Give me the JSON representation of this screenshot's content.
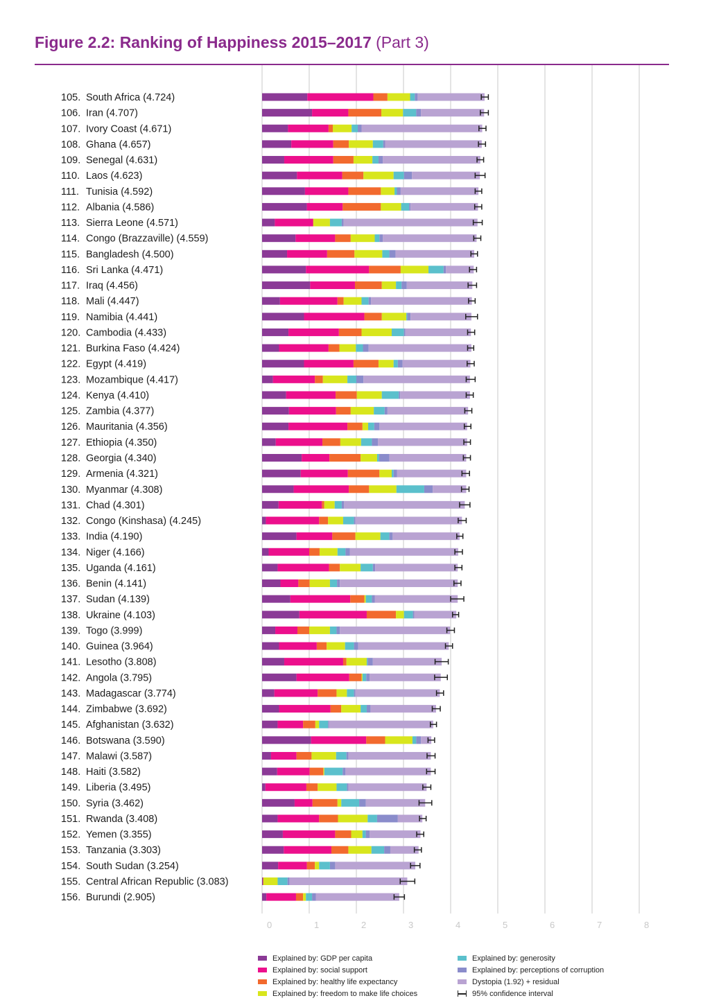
{
  "title": {
    "main": "Figure 2.2: Ranking of Happiness 2015–2017",
    "part": "(Part 3)"
  },
  "colors": {
    "accent": "#8a2a8c",
    "gdp": "#8b3a96",
    "social": "#ec0f8c",
    "health": "#f26a2e",
    "freedom": "#d8e61d",
    "generosity": "#5bc0cc",
    "corruption": "#8a8ccb",
    "dystopia": "#b9a3d2",
    "ci": "#222222",
    "grid": "#dcdcdc",
    "tick": "#c8c8c8"
  },
  "legend": [
    {
      "key": "gdp",
      "label": "Explained by: GDP per capita"
    },
    {
      "key": "social",
      "label": "Explained by: social support"
    },
    {
      "key": "health",
      "label": "Explained by: healthy life expectancy"
    },
    {
      "key": "freedom",
      "label": "Explained by: freedom to make life choices"
    },
    {
      "key": "generosity",
      "label": "Explained by: generosity"
    },
    {
      "key": "corruption",
      "label": "Explained by: perceptions of corruption"
    },
    {
      "key": "dystopia",
      "label": "Dystopia (1.92) + residual"
    },
    {
      "key": "ci",
      "label": "95% confidence interval"
    }
  ],
  "chart_data": {
    "type": "bar",
    "orientation": "horizontal",
    "stacked": true,
    "xlim": [
      0,
      8
    ],
    "x_ticks": [
      "0",
      "1",
      "2",
      "3",
      "4",
      "5",
      "6",
      "7",
      "8"
    ],
    "grid": true,
    "legend_position": "bottom",
    "series": [
      {
        "key": "gdp",
        "name": "Explained by: GDP per capita"
      },
      {
        "key": "social",
        "name": "Explained by: social support"
      },
      {
        "key": "health",
        "name": "Explained by: healthy life expectancy"
      },
      {
        "key": "freedom",
        "name": "Explained by: freedom to make life choices"
      },
      {
        "key": "generosity",
        "name": "Explained by: generosity"
      },
      {
        "key": "corruption",
        "name": "Explained by: perceptions of corruption"
      },
      {
        "key": "dystopia",
        "name": "Dystopia (1.92) + residual"
      }
    ],
    "rows": [
      {
        "label": "105. South Africa (4.724)",
        "score": 4.724,
        "parts": [
          0.96,
          1.4,
          0.3,
          0.48,
          0.1,
          0.06,
          1.42
        ],
        "ci": [
          4.65,
          4.8
        ]
      },
      {
        "label": "106. Iran (4.707)",
        "score": 4.707,
        "parts": [
          1.06,
          0.77,
          0.7,
          0.46,
          0.28,
          0.1,
          1.34
        ],
        "ci": [
          4.63,
          4.8
        ]
      },
      {
        "label": "107. Ivory Coast (4.671)",
        "score": 4.671,
        "parts": [
          0.55,
          0.86,
          0.09,
          0.4,
          0.13,
          0.08,
          2.56
        ],
        "ci": [
          4.6,
          4.75
        ]
      },
      {
        "label": "108. Ghana (4.657)",
        "score": 4.657,
        "parts": [
          0.62,
          0.89,
          0.33,
          0.51,
          0.22,
          0.04,
          2.05
        ],
        "ci": [
          4.59,
          4.74
        ]
      },
      {
        "label": "109. Senegal (4.631)",
        "score": 4.631,
        "parts": [
          0.47,
          1.04,
          0.43,
          0.4,
          0.13,
          0.09,
          2.07
        ],
        "ci": [
          4.56,
          4.7
        ]
      },
      {
        "label": "110. Laos (4.623)",
        "score": 4.623,
        "parts": [
          0.74,
          0.96,
          0.45,
          0.64,
          0.22,
          0.17,
          1.44
        ],
        "ci": [
          4.52,
          4.73
        ]
      },
      {
        "label": "111. Tunisia (4.592)",
        "score": 4.592,
        "parts": [
          0.91,
          0.92,
          0.69,
          0.29,
          0.05,
          0.08,
          1.65
        ],
        "ci": [
          4.52,
          4.66
        ]
      },
      {
        "label": "112. Albania (4.586)",
        "score": 4.586,
        "parts": [
          0.95,
          0.76,
          0.81,
          0.43,
          0.17,
          0.03,
          1.43
        ],
        "ci": [
          4.51,
          4.66
        ]
      },
      {
        "label": "113. Sierra Leone (4.571)",
        "score": 4.571,
        "parts": [
          0.27,
          0.81,
          0.01,
          0.35,
          0.25,
          0.04,
          2.84
        ],
        "ci": [
          4.48,
          4.67
        ]
      },
      {
        "label": "114. Congo (Brazzaville) (4.559)",
        "score": 4.559,
        "parts": [
          0.71,
          0.84,
          0.33,
          0.51,
          0.1,
          0.07,
          1.99
        ],
        "ci": [
          4.49,
          4.64
        ]
      },
      {
        "label": "115. Bangladesh (4.500)",
        "score": 4.5,
        "parts": [
          0.53,
          0.85,
          0.58,
          0.59,
          0.15,
          0.13,
          1.67
        ],
        "ci": [
          4.43,
          4.57
        ]
      },
      {
        "label": "116. Sri Lanka (4.471)",
        "score": 4.471,
        "parts": [
          0.93,
          1.34,
          0.67,
          0.59,
          0.32,
          0.05,
          0.59
        ],
        "ci": [
          4.4,
          4.55
        ]
      },
      {
        "label": "117. Iraq (4.456)",
        "score": 4.456,
        "parts": [
          1.02,
          0.95,
          0.57,
          0.3,
          0.12,
          0.11,
          1.39
        ],
        "ci": [
          4.37,
          4.55
        ]
      },
      {
        "label": "118. Mali (4.447)",
        "score": 4.447,
        "parts": [
          0.38,
          1.22,
          0.13,
          0.38,
          0.15,
          0.05,
          2.14
        ],
        "ci": [
          4.38,
          4.52
        ]
      },
      {
        "label": "119. Namibia (4.441)",
        "score": 4.441,
        "parts": [
          0.89,
          1.28,
          0.37,
          0.52,
          0.02,
          0.07,
          1.29
        ],
        "ci": [
          4.32,
          4.57
        ]
      },
      {
        "label": "120. Cambodia (4.433)",
        "score": 4.433,
        "parts": [
          0.56,
          1.07,
          0.48,
          0.64,
          0.26,
          0.03,
          1.39
        ],
        "ci": [
          4.36,
          4.51
        ]
      },
      {
        "label": "121. Burkina Faso (4.424)",
        "score": 4.424,
        "parts": [
          0.36,
          1.05,
          0.23,
          0.35,
          0.15,
          0.12,
          2.18
        ],
        "ci": [
          4.36,
          4.49
        ]
      },
      {
        "label": "122. Egypt (4.419)",
        "score": 4.419,
        "parts": [
          0.89,
          1.05,
          0.53,
          0.32,
          0.09,
          0.1,
          1.44
        ],
        "ci": [
          4.35,
          4.5
        ]
      },
      {
        "label": "123. Mozambique (4.417)",
        "score": 4.417,
        "parts": [
          0.23,
          0.89,
          0.17,
          0.52,
          0.19,
          0.15,
          2.26
        ],
        "ci": [
          4.33,
          4.52
        ]
      },
      {
        "label": "124. Kenya (4.410)",
        "score": 4.41,
        "parts": [
          0.51,
          1.05,
          0.45,
          0.53,
          0.36,
          0.03,
          1.48
        ],
        "ci": [
          4.33,
          4.48
        ]
      },
      {
        "label": "125. Zambia (4.377)",
        "score": 4.377,
        "parts": [
          0.57,
          1.0,
          0.31,
          0.49,
          0.23,
          0.06,
          1.71
        ],
        "ci": [
          4.3,
          4.45
        ]
      },
      {
        "label": "126. Mauritania (4.356)",
        "score": 4.356,
        "parts": [
          0.56,
          1.25,
          0.32,
          0.12,
          0.13,
          0.11,
          1.86
        ],
        "ci": [
          4.29,
          4.43
        ]
      },
      {
        "label": "127. Ethiopia (4.350)",
        "score": 4.35,
        "parts": [
          0.29,
          0.99,
          0.38,
          0.44,
          0.23,
          0.13,
          1.89
        ],
        "ci": [
          4.28,
          4.42
        ]
      },
      {
        "label": "128. Georgia (4.340)",
        "score": 4.34,
        "parts": [
          0.84,
          0.59,
          0.66,
          0.35,
          0.04,
          0.22,
          1.63
        ],
        "ci": [
          4.27,
          4.42
        ]
      },
      {
        "label": "129. Armenia (4.321)",
        "score": 4.321,
        "parts": [
          0.82,
          1.0,
          0.67,
          0.26,
          0.04,
          0.07,
          1.47
        ],
        "ci": [
          4.24,
          4.4
        ]
      },
      {
        "label": "130. Myanmar (4.308)",
        "score": 4.308,
        "parts": [
          0.67,
          1.17,
          0.43,
          0.58,
          0.59,
          0.18,
          0.71
        ],
        "ci": [
          4.23,
          4.39
        ]
      },
      {
        "label": "131. Chad (4.301)",
        "score": 4.301,
        "parts": [
          0.35,
          0.92,
          0.05,
          0.22,
          0.15,
          0.05,
          2.56
        ],
        "ci": [
          4.19,
          4.41
        ]
      },
      {
        "label": "132. Congo (Kinshasa) (4.245)",
        "score": 4.245,
        "parts": [
          0.08,
          1.13,
          0.19,
          0.32,
          0.23,
          0.03,
          2.26
        ],
        "ci": [
          4.16,
          4.33
        ]
      },
      {
        "label": "133. India (4.190)",
        "score": 4.19,
        "parts": [
          0.73,
          0.76,
          0.49,
          0.53,
          0.19,
          0.07,
          1.42
        ],
        "ci": [
          4.13,
          4.26
        ]
      },
      {
        "label": "134. Niger (4.166)",
        "score": 4.166,
        "parts": [
          0.14,
          0.86,
          0.22,
          0.38,
          0.17,
          0.09,
          2.3
        ],
        "ci": [
          4.09,
          4.25
        ]
      },
      {
        "label": "135. Uganda (4.161)",
        "score": 4.161,
        "parts": [
          0.33,
          1.09,
          0.23,
          0.44,
          0.26,
          0.05,
          1.75
        ],
        "ci": [
          4.09,
          4.24
        ]
      },
      {
        "label": "136. Benin (4.141)",
        "score": 4.141,
        "parts": [
          0.39,
          0.38,
          0.24,
          0.43,
          0.15,
          0.06,
          2.5
        ],
        "ci": [
          4.07,
          4.22
        ]
      },
      {
        "label": "137. Sudan (4.139)",
        "score": 4.139,
        "parts": [
          0.6,
          1.27,
          0.3,
          0.03,
          0.13,
          0.06,
          1.76
        ],
        "ci": [
          4.0,
          4.28
        ]
      },
      {
        "label": "138. Ukraine (4.103)",
        "score": 4.103,
        "parts": [
          0.79,
          1.43,
          0.62,
          0.17,
          0.19,
          0.03,
          0.89
        ],
        "ci": [
          4.04,
          4.17
        ]
      },
      {
        "label": "139. Togo (3.999)",
        "score": 3.999,
        "parts": [
          0.28,
          0.47,
          0.25,
          0.44,
          0.14,
          0.07,
          2.34
        ],
        "ci": [
          3.92,
          4.08
        ]
      },
      {
        "label": "140. Guinea (3.964)",
        "score": 3.964,
        "parts": [
          0.36,
          0.8,
          0.21,
          0.39,
          0.19,
          0.09,
          1.92
        ],
        "ci": [
          3.89,
          4.04
        ]
      },
      {
        "label": "141. Lesotho (3.808)",
        "score": 3.808,
        "parts": [
          0.47,
          1.25,
          0.07,
          0.43,
          0.02,
          0.11,
          1.46
        ],
        "ci": [
          3.67,
          3.95
        ]
      },
      {
        "label": "142. Angola (3.795)",
        "score": 3.795,
        "parts": [
          0.73,
          1.12,
          0.26,
          0.02,
          0.08,
          0.07,
          1.51
        ],
        "ci": [
          3.66,
          3.93
        ]
      },
      {
        "label": "143. Madagascar (3.774)",
        "score": 3.774,
        "parts": [
          0.26,
          0.92,
          0.4,
          0.22,
          0.15,
          0.03,
          1.79
        ],
        "ci": [
          3.7,
          3.85
        ]
      },
      {
        "label": "144. Zimbabwe (3.692)",
        "score": 3.692,
        "parts": [
          0.36,
          1.09,
          0.23,
          0.41,
          0.13,
          0.08,
          1.39
        ],
        "ci": [
          3.61,
          3.78
        ]
      },
      {
        "label": "145. Afghanistan (3.632)",
        "score": 3.632,
        "parts": [
          0.33,
          0.54,
          0.26,
          0.08,
          0.19,
          0.02,
          2.21
        ],
        "ci": [
          3.57,
          3.7
        ]
      },
      {
        "label": "146. Botswana (3.590)",
        "score": 3.59,
        "parts": [
          1.04,
          1.17,
          0.4,
          0.58,
          0.08,
          0.1,
          0.22
        ],
        "ci": [
          3.52,
          3.66
        ]
      },
      {
        "label": "147. Malawi (3.587)",
        "score": 3.587,
        "parts": [
          0.19,
          0.54,
          0.32,
          0.52,
          0.22,
          0.04,
          1.75
        ],
        "ci": [
          3.5,
          3.67
        ]
      },
      {
        "label": "148. Haiti (3.582)",
        "score": 3.582,
        "parts": [
          0.32,
          0.69,
          0.29,
          0.02,
          0.39,
          0.06,
          1.81
        ],
        "ci": [
          3.49,
          3.67
        ]
      },
      {
        "label": "149. Liberia (3.495)",
        "score": 3.495,
        "parts": [
          0.07,
          0.87,
          0.24,
          0.4,
          0.22,
          0.03,
          1.66
        ],
        "ci": [
          3.41,
          3.58
        ]
      },
      {
        "label": "150. Syria (3.462)",
        "score": 3.462,
        "parts": [
          0.69,
          0.38,
          0.53,
          0.08,
          0.38,
          0.14,
          1.26
        ],
        "ci": [
          3.33,
          3.6
        ]
      },
      {
        "label": "151. Rwanda (3.408)",
        "score": 3.408,
        "parts": [
          0.33,
          0.88,
          0.4,
          0.63,
          0.2,
          0.44,
          0.52
        ],
        "ci": [
          3.34,
          3.48
        ]
      },
      {
        "label": "152. Yemen (3.355)",
        "score": 3.355,
        "parts": [
          0.44,
          1.11,
          0.34,
          0.24,
          0.07,
          0.08,
          1.08
        ],
        "ci": [
          3.28,
          3.43
        ]
      },
      {
        "label": "153. Tanzania (3.303)",
        "score": 3.303,
        "parts": [
          0.46,
          1.01,
          0.36,
          0.49,
          0.27,
          0.13,
          0.6
        ],
        "ci": [
          3.23,
          3.38
        ]
      },
      {
        "label": "154. South Sudan (3.254)",
        "score": 3.254,
        "parts": [
          0.34,
          0.61,
          0.17,
          0.09,
          0.23,
          0.11,
          1.7
        ],
        "ci": [
          3.15,
          3.35
        ]
      },
      {
        "label": "155. Central African Republic (3.083)",
        "score": 3.083,
        "parts": [
          0.02,
          0.0,
          0.01,
          0.3,
          0.21,
          0.04,
          2.5
        ],
        "ci": [
          2.93,
          3.24
        ]
      },
      {
        "label": "156. Burundi (2.905)",
        "score": 2.905,
        "parts": [
          0.09,
          0.63,
          0.15,
          0.06,
          0.13,
          0.08,
          1.77
        ],
        "ci": [
          2.8,
          3.02
        ]
      }
    ]
  }
}
